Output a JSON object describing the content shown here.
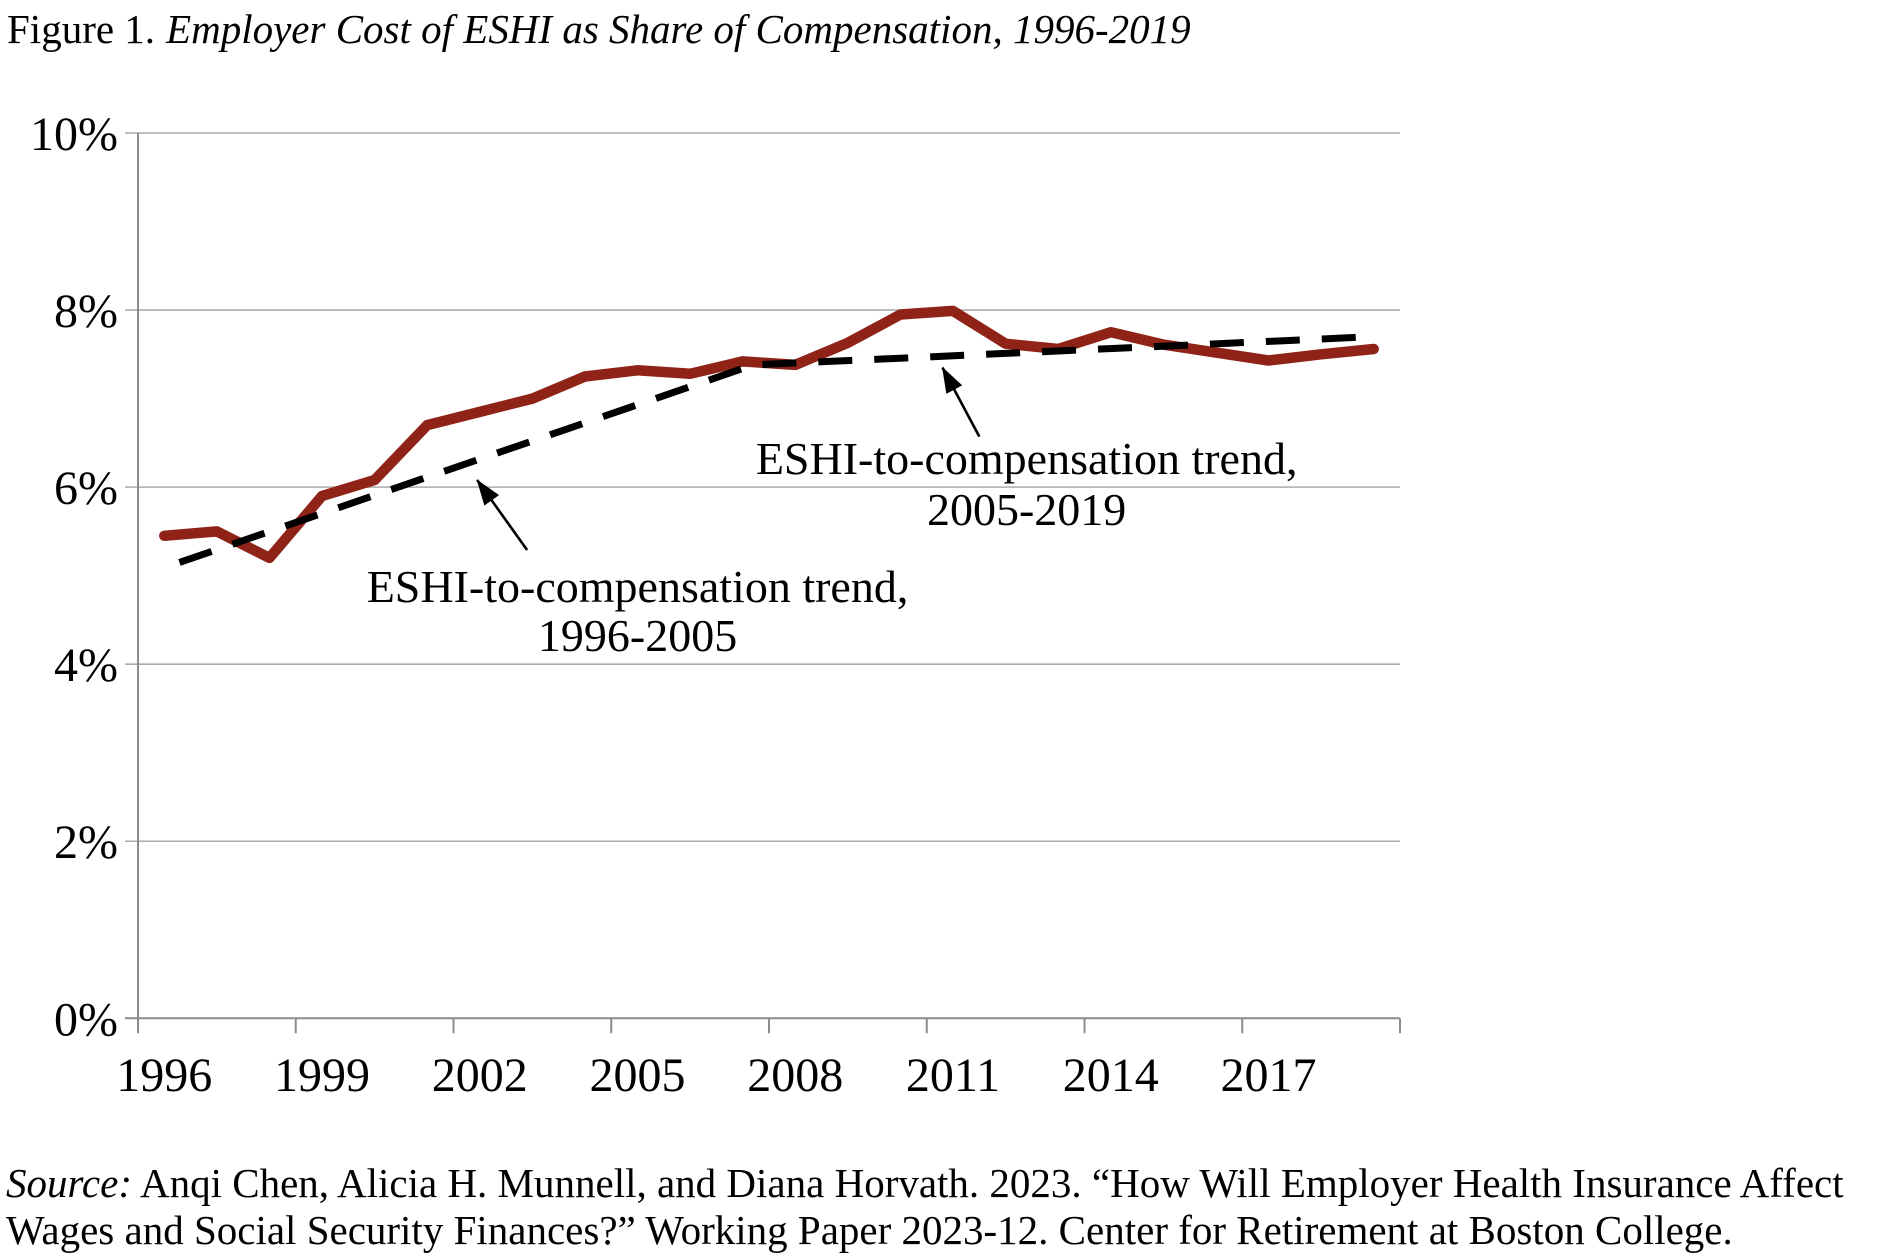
{
  "title": {
    "figure_label": "Figure 1.",
    "text": "Employer Cost of ESHI as Share of Compensation, 1996-2019"
  },
  "source": {
    "prefix": "Source:",
    "line1": "Anqi Chen, Alicia H. Munnell, and Diana Horvath. 2023. “How Will Employer Health Insurance Affect",
    "line2": "Wages and Social Security Finances?” Working Paper 2023-12. Center for Retirement at Boston College."
  },
  "chart_data": {
    "type": "line",
    "title": "Figure 1. Employer Cost of ESHI as Share of Compensation, 1996-2019",
    "x": [
      1996,
      1997,
      1998,
      1999,
      2000,
      2001,
      2002,
      2003,
      2004,
      2005,
      2006,
      2007,
      2008,
      2009,
      2010,
      2011,
      2012,
      2013,
      2014,
      2015,
      2016,
      2017,
      2018,
      2019
    ],
    "series": [
      {
        "name": "Employer cost of ESHI as share of compensation",
        "color": "#8f2318",
        "line_style": "solid",
        "values": [
          5.45,
          5.5,
          5.2,
          5.9,
          6.08,
          6.7,
          6.85,
          7.0,
          7.25,
          7.32,
          7.28,
          7.42,
          7.38,
          7.63,
          7.95,
          7.99,
          7.62,
          7.56,
          7.75,
          7.61,
          7.52,
          7.43,
          7.5,
          7.56
        ]
      },
      {
        "name": "ESHI-to-compensation fitted trend (dashed)",
        "color": "#000000",
        "line_style": "dashed",
        "points": [
          [
            1996,
            5.09
          ],
          [
            2007.2,
            7.38
          ],
          [
            2019,
            7.7
          ]
        ]
      }
    ],
    "ylim": [
      0,
      10
    ],
    "ytick_values": [
      0,
      2,
      4,
      6,
      8,
      10
    ],
    "ytick_labels": [
      "0%",
      "2%",
      "4%",
      "6%",
      "8%",
      "10%"
    ],
    "xtick_years": [
      1996,
      1999,
      2002,
      2005,
      2008,
      2011,
      2014,
      2017
    ],
    "xtick_labels": [
      "1996",
      "1999",
      "2002",
      "2005",
      "2008",
      "2011",
      "2014",
      "2017"
    ],
    "x_axis_end_year": 2020,
    "grid": "horizontal",
    "legend": "none",
    "annotations": [
      {
        "lines": [
          "ESHI-to-compensation trend,",
          "1996-2005"
        ],
        "x_year": 2005.0,
        "line_baselines_pct": [
          4.7,
          4.15
        ],
        "arrow": {
          "from": [
            2002.9,
            5.29
          ],
          "to": [
            2001.95,
            6.08
          ]
        }
      },
      {
        "lines": [
          "ESHI-to-compensation trend,",
          "2005-2019"
        ],
        "x_year": 2012.4,
        "line_baselines_pct": [
          6.15,
          5.57
        ],
        "arrow": {
          "from": [
            2011.5,
            6.57
          ],
          "to": [
            2010.8,
            7.35
          ]
        }
      }
    ]
  }
}
